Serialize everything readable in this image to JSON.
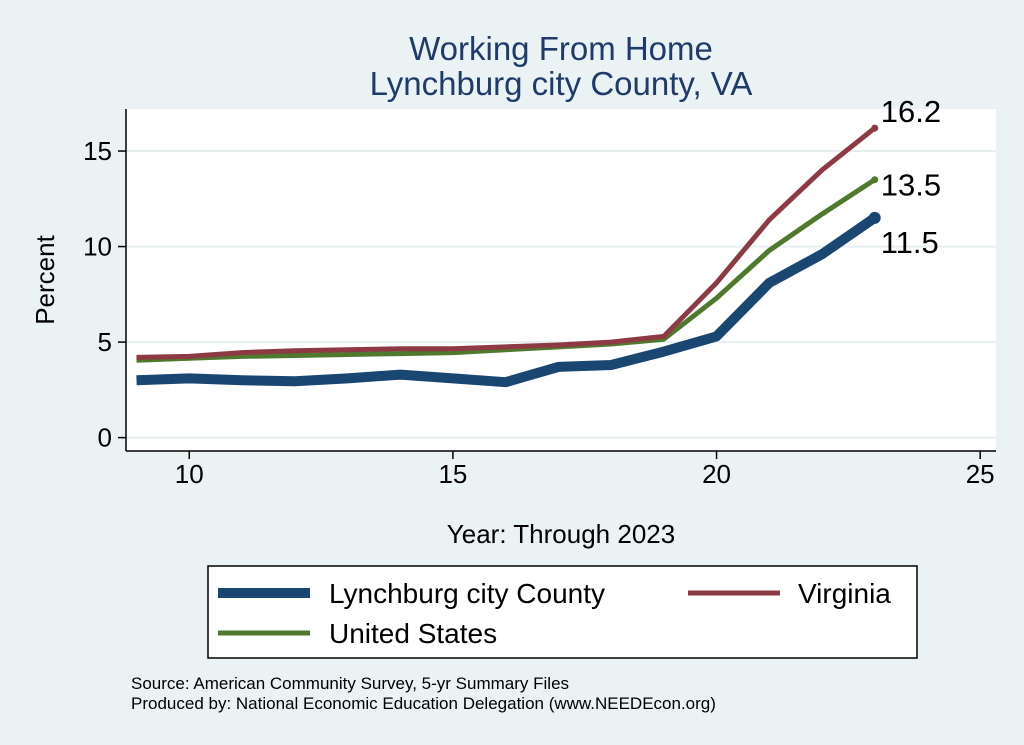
{
  "chart_data": {
    "type": "line",
    "title": "Working From Home",
    "subtitle": "Lynchburg city County, VA",
    "xlabel": "Year: Through 2023",
    "ylabel": "Percent",
    "xlim": [
      8.8,
      25.3
    ],
    "ylim": [
      -0.7,
      17.2
    ],
    "xticks": [
      10,
      15,
      20,
      25
    ],
    "yticks": [
      0,
      5,
      10,
      15
    ],
    "grid": true,
    "legend_position": "bottom",
    "series": [
      {
        "name": "Lynchburg city County",
        "color": "#1a4772",
        "width": 10,
        "x": [
          9,
          10,
          11,
          12,
          13,
          14,
          15,
          16,
          17,
          18,
          19,
          20,
          21,
          22,
          23
        ],
        "values": [
          3.0,
          3.1,
          3.0,
          2.95,
          3.1,
          3.3,
          3.1,
          2.9,
          3.7,
          3.8,
          4.5,
          5.3,
          8.1,
          9.6,
          11.5
        ],
        "end_label": "11.5"
      },
      {
        "name": "Virginia",
        "color": "#8e3a44",
        "width": 5,
        "x": [
          9,
          10,
          11,
          12,
          13,
          14,
          15,
          16,
          17,
          18,
          19,
          20,
          21,
          22,
          23
        ],
        "values": [
          4.2,
          4.25,
          4.45,
          4.55,
          4.6,
          4.65,
          4.65,
          4.75,
          4.85,
          5.0,
          5.3,
          8.1,
          11.4,
          14.0,
          16.2
        ],
        "end_label": "16.2"
      },
      {
        "name": "United States",
        "color": "#4f7a2e",
        "width": 5,
        "x": [
          9,
          10,
          11,
          12,
          13,
          14,
          15,
          16,
          17,
          18,
          19,
          20,
          21,
          22,
          23
        ],
        "values": [
          4.05,
          4.15,
          4.25,
          4.3,
          4.35,
          4.4,
          4.45,
          4.6,
          4.75,
          4.9,
          5.15,
          7.3,
          9.8,
          11.7,
          13.5
        ],
        "end_label": "13.5"
      }
    ]
  },
  "notes": [
    "Source: American Community Survey, 5-yr Summary Files",
    "Produced by: National Economic Education Delegation (www.NEEDEcon.org)"
  ]
}
